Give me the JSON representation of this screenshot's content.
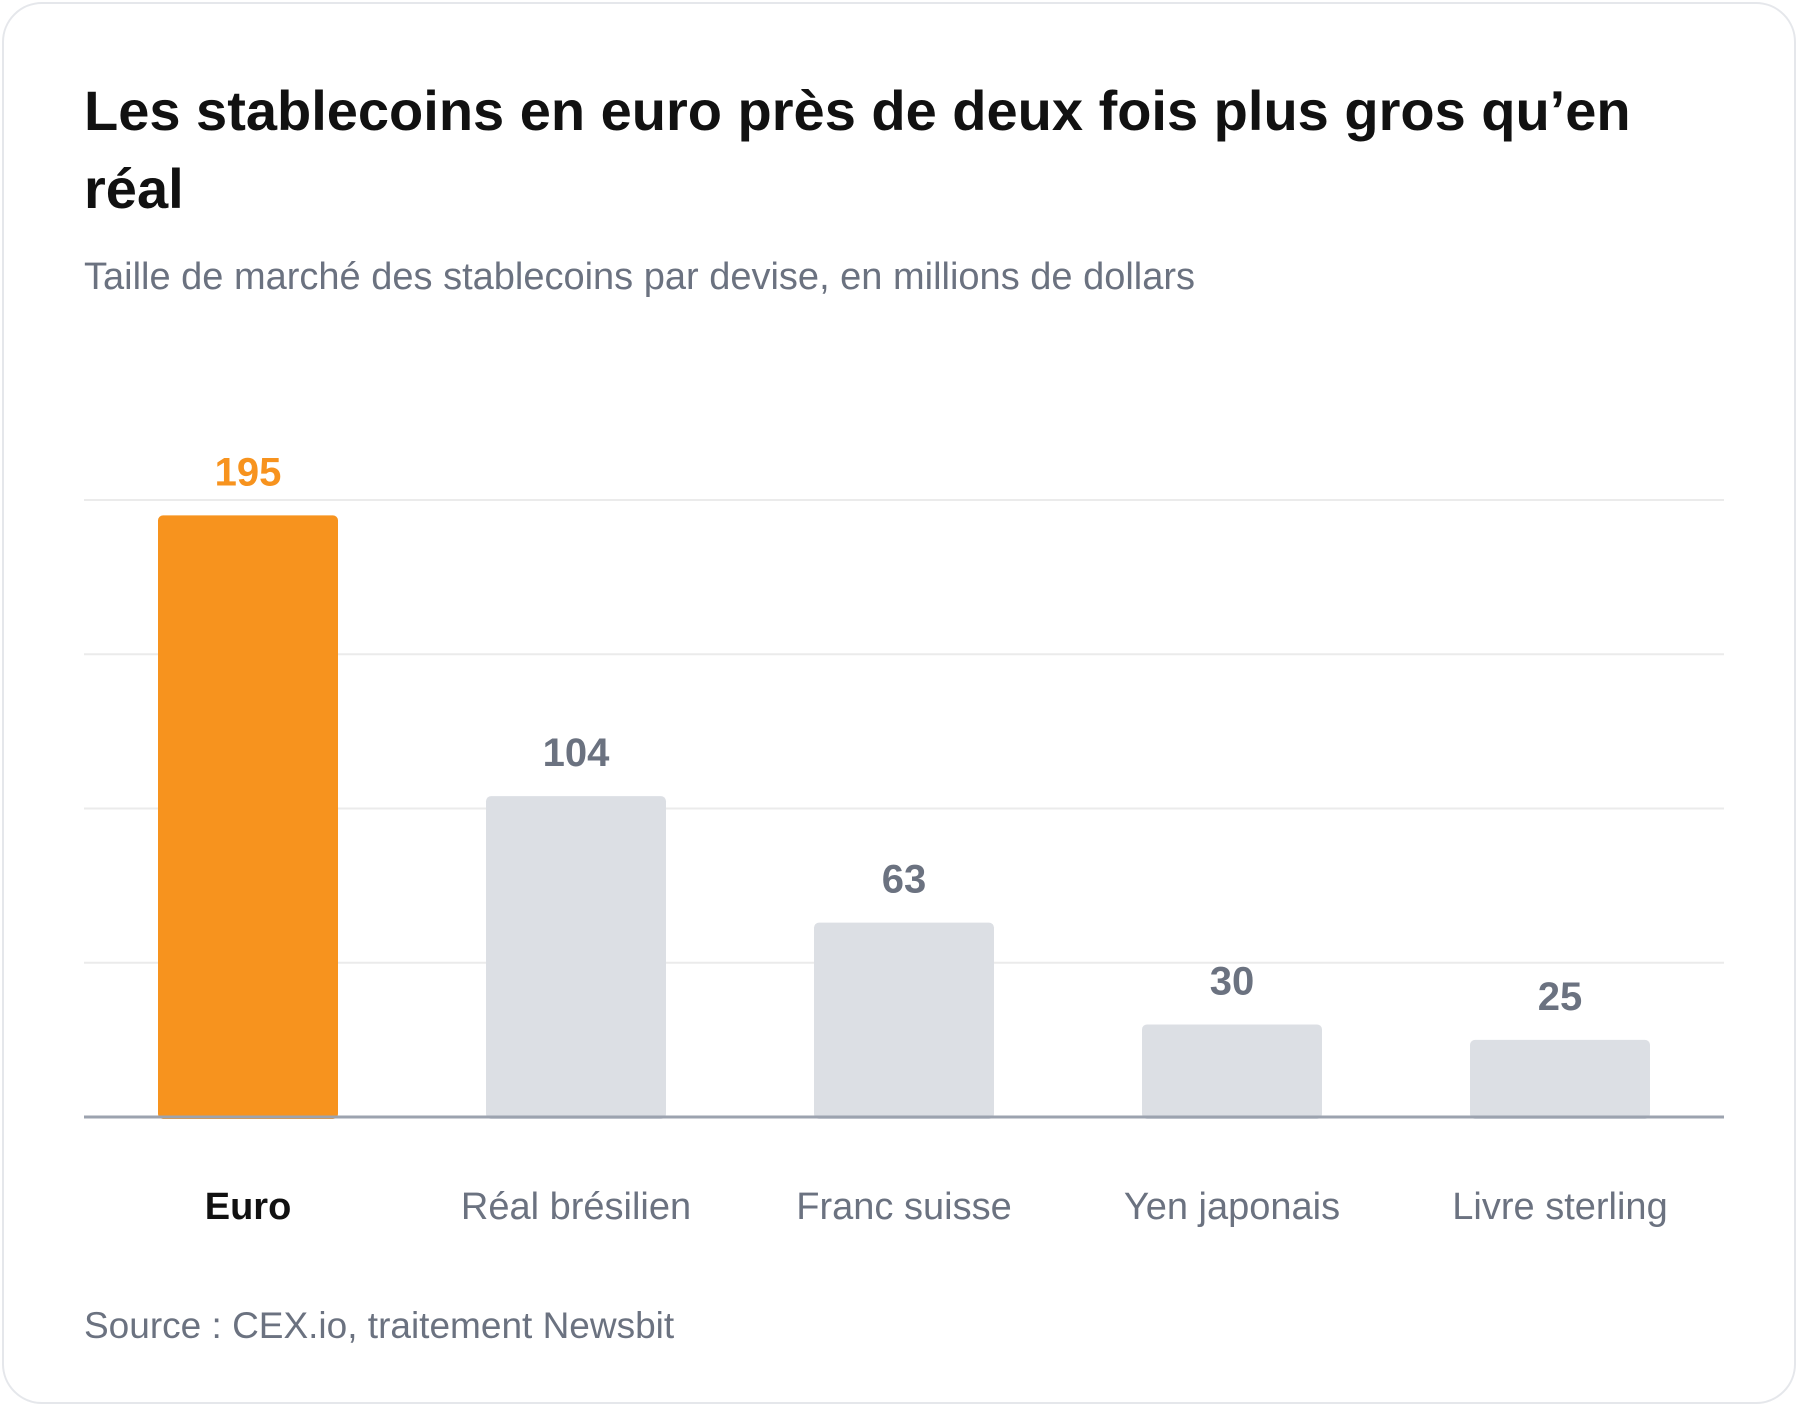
{
  "title": "Les stablecoins en euro près de deux fois plus gros qu’en réal",
  "subtitle": "Taille de marché des stablecoins par devise, en millions de dollars",
  "source": "Source : CEX.io, traitement Newsbit",
  "colors": {
    "highlight": "#f7931e",
    "bar": "#dcdfe4",
    "value_label": "#6b7280",
    "category_label": "#6b7280",
    "highlight_category_label": "#111111",
    "gridline": "#ebebeb",
    "baseline": "#9ca3af"
  },
  "chart_data": {
    "type": "bar",
    "categories": [
      "Euro",
      "Réal brésilien",
      "Franc suisse",
      "Yen japonais",
      "Livre sterling"
    ],
    "values": [
      195,
      104,
      63,
      30,
      25
    ],
    "value_labels": [
      "195",
      "104",
      "63",
      "30",
      "25"
    ],
    "highlight_index": 0,
    "ylim": [
      0,
      200
    ],
    "gridlines": [
      50,
      100,
      150,
      200
    ],
    "grid": true,
    "legend": false,
    "xlabel": "",
    "ylabel": ""
  }
}
